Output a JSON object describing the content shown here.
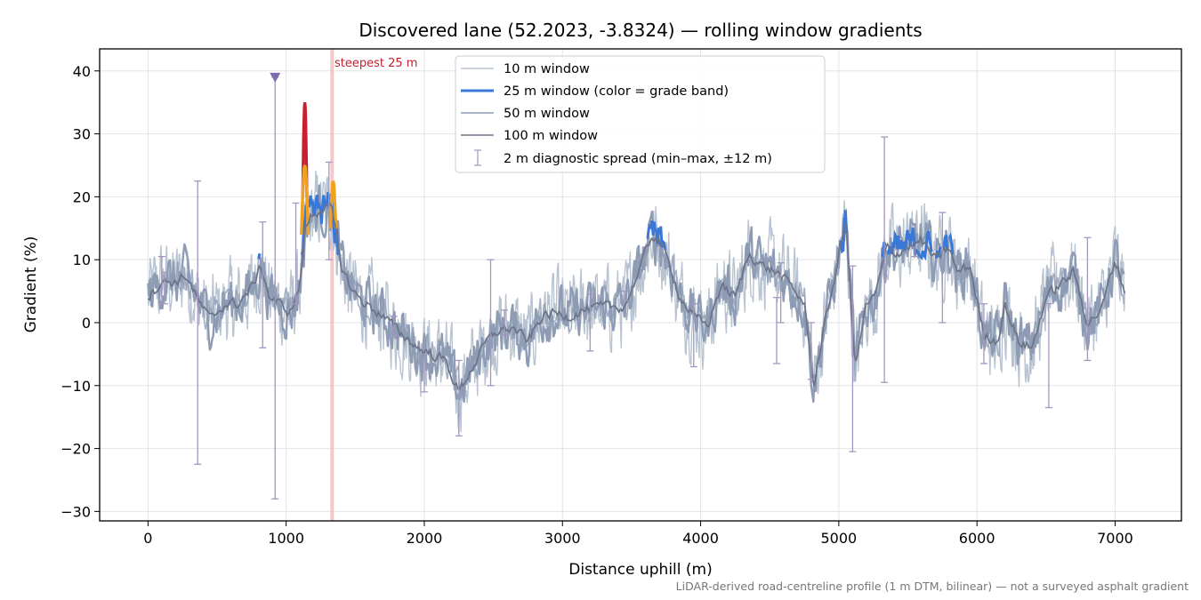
{
  "colors": {
    "w10": "#b8c3d1",
    "w25_base": "#3a78d8",
    "w25_mid": "#f0a21e",
    "w25_high": "#c8202e",
    "w50": "#8d9cb4",
    "w100": "#6c7388",
    "spread": "#a396bf",
    "marker": "#7d6cab",
    "highlight": "#f4b6b6",
    "annotation": "#c8202e",
    "grid": "#e3e3e3"
  },
  "chart_data": {
    "type": "line",
    "title": "Discovered lane (52.2023, -3.8324) — rolling window gradients",
    "xlabel": "Distance uphill (m)",
    "ylabel": "Gradient (%)",
    "xlim": [
      -350,
      7480
    ],
    "ylim": [
      -31.5,
      43.5
    ],
    "xticks": [
      0,
      1000,
      2000,
      3000,
      4000,
      5000,
      6000,
      7000
    ],
    "yticks": [
      -30,
      -20,
      -10,
      0,
      10,
      20,
      30,
      40
    ],
    "grid": true,
    "legend_position": "top-center",
    "series": [
      {
        "name": "10 m window",
        "key": "w10"
      },
      {
        "name": "25 m window (color = grade band)",
        "key": "w25"
      },
      {
        "name": "50 m window",
        "key": "w50"
      },
      {
        "name": "100 m window",
        "key": "w100"
      }
    ],
    "profile": {
      "x": [
        0,
        100,
        200,
        280,
        350,
        450,
        560,
        650,
        750,
        820,
        880,
        950,
        1030,
        1100,
        1140,
        1180,
        1250,
        1330,
        1400,
        1480,
        1550,
        1700,
        1850,
        1950,
        2050,
        2150,
        2250,
        2350,
        2450,
        2550,
        2650,
        2750,
        2850,
        2950,
        3050,
        3150,
        3300,
        3450,
        3550,
        3650,
        3700,
        3780,
        3850,
        3950,
        4050,
        4150,
        4250,
        4350,
        4450,
        4550,
        4650,
        4750,
        4820,
        4900,
        4950,
        5050,
        5120,
        5200,
        5260,
        5350,
        5420,
        5500,
        5600,
        5700,
        5800,
        5850,
        5950,
        6050,
        6150,
        6200,
        6300,
        6400,
        6500,
        6600,
        6700,
        6800,
        6900,
        7000,
        7070
      ],
      "y": [
        4,
        6.5,
        6.5,
        7.5,
        4,
        0.5,
        3,
        3,
        5.5,
        9,
        4,
        3,
        1.5,
        6,
        15,
        17,
        18,
        18,
        9,
        5,
        3.5,
        1,
        -2,
        -4,
        -5,
        -6,
        -11,
        -7,
        -3,
        -1,
        -1,
        -3,
        1,
        1.5,
        1,
        2,
        2.5,
        2.5,
        8,
        14,
        13,
        9,
        4,
        1,
        -0.5,
        6,
        4,
        11,
        9,
        8,
        6,
        3,
        -10,
        0,
        5,
        16,
        -7,
        3,
        4,
        12,
        11,
        12,
        13,
        10,
        12,
        8,
        9,
        -2,
        -3,
        3,
        -3,
        -4,
        4,
        6,
        8,
        0,
        2,
        10,
        5
      ]
    },
    "w25_highlight_segments": [
      {
        "band": "high",
        "x": [
          1120,
          1150
        ],
        "y": [
          20,
          35
        ]
      },
      {
        "band": "mid",
        "x": [
          1110,
          1160
        ],
        "y": [
          14,
          25
        ]
      },
      {
        "band": "mid",
        "x": [
          1320,
          1360
        ],
        "y": [
          15,
          22.5
        ]
      }
    ],
    "spread_bars": [
      {
        "x": 100,
        "min": 3,
        "max": 10.5
      },
      {
        "x": 120,
        "min": 3,
        "max": 8
      },
      {
        "x": 360,
        "min": -22.5,
        "max": 22.5
      },
      {
        "x": 830,
        "min": -4,
        "max": 16
      },
      {
        "x": 920,
        "min": -28,
        "max": 39
      },
      {
        "x": 1070,
        "min": 3,
        "max": 19
      },
      {
        "x": 1310,
        "min": 10,
        "max": 25.5
      },
      {
        "x": 1780,
        "min": -2,
        "max": 1
      },
      {
        "x": 2000,
        "min": -11,
        "max": -5
      },
      {
        "x": 2250,
        "min": -18,
        "max": -6
      },
      {
        "x": 2480,
        "min": -10,
        "max": 10
      },
      {
        "x": 2580,
        "min": -2,
        "max": 2
      },
      {
        "x": 3200,
        "min": -4.5,
        "max": 4.5
      },
      {
        "x": 3450,
        "min": 3.5,
        "max": 5
      },
      {
        "x": 3950,
        "min": -7,
        "max": 3
      },
      {
        "x": 4550,
        "min": -6.5,
        "max": 4
      },
      {
        "x": 4580,
        "min": 0,
        "max": 9.5
      },
      {
        "x": 4800,
        "min": -9,
        "max": 0
      },
      {
        "x": 5100,
        "min": -20.5,
        "max": 9
      },
      {
        "x": 5330,
        "min": -9.5,
        "max": 29.5
      },
      {
        "x": 5550,
        "min": 10.5,
        "max": 12
      },
      {
        "x": 5750,
        "min": 0,
        "max": 17.5
      },
      {
        "x": 6050,
        "min": -6.5,
        "max": 3
      },
      {
        "x": 6520,
        "min": -13.5,
        "max": 3
      },
      {
        "x": 6800,
        "min": -6,
        "max": 13.5
      }
    ],
    "marker": {
      "x": 920,
      "y": 39
    },
    "highlight_band": {
      "x": [
        1320,
        1345
      ],
      "label": "steepest 25 m"
    }
  },
  "legend_items": [
    "10 m window",
    "25 m window (color = grade band)",
    "50 m window",
    "100 m window",
    "2 m diagnostic spread (min–max, ±12 m)"
  ],
  "footnote": "LiDAR-derived road-centreline profile (1 m DTM, bilinear) — not a surveyed asphalt gradient"
}
